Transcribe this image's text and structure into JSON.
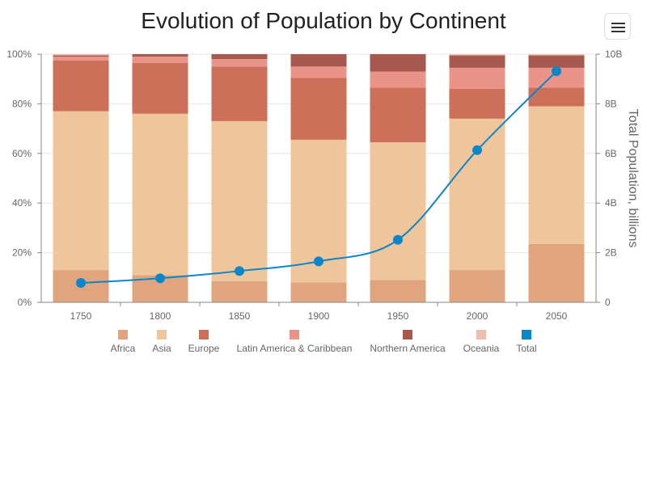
{
  "chart_data": {
    "type": "bar",
    "title": "Evolution of Population by Continent",
    "categories": [
      "1750",
      "1800",
      "1850",
      "1900",
      "1950",
      "2000",
      "2050"
    ],
    "stacking": "percent",
    "series": [
      {
        "name": "Africa",
        "color": "#e0a47e",
        "values": [
          13,
          11,
          8.5,
          8,
          9,
          13,
          23.5
        ]
      },
      {
        "name": "Asia",
        "color": "#efc69b",
        "values": [
          64,
          65,
          64.5,
          57.5,
          55.5,
          61,
          55.5
        ]
      },
      {
        "name": "Europe",
        "color": "#cc705a",
        "values": [
          20.5,
          20.5,
          22,
          25,
          22,
          12,
          7.5
        ]
      },
      {
        "name": "Latin America & Caribbean",
        "color": "#ea9389",
        "values": [
          1.5,
          2.5,
          3,
          4.5,
          6.5,
          8.5,
          8
        ]
      },
      {
        "name": "Northern America",
        "color": "#a75950",
        "values": [
          0.5,
          1,
          2,
          5,
          7,
          5,
          5
        ]
      },
      {
        "name": "Oceania",
        "color": "#f0bdb0",
        "values": [
          0.5,
          0,
          0,
          0,
          0,
          0.5,
          0.5
        ]
      }
    ],
    "line_series": {
      "name": "Total",
      "color": "#0b86c9",
      "values": [
        0.78,
        0.97,
        1.26,
        1.65,
        2.52,
        6.13,
        9.31
      ]
    },
    "y_axis_left": {
      "min": 0,
      "max": 100,
      "ticks": [
        "0%",
        "20%",
        "40%",
        "60%",
        "80%",
        "100%"
      ]
    },
    "y_axis_right": {
      "min": 0,
      "max": 10,
      "title": "Total Population, billions",
      "ticks": [
        "0",
        "2B",
        "4B",
        "6B",
        "8B",
        "10B"
      ]
    },
    "grid": true,
    "legend_position": "bottom"
  },
  "menu_icon": "hamburger-menu-icon"
}
